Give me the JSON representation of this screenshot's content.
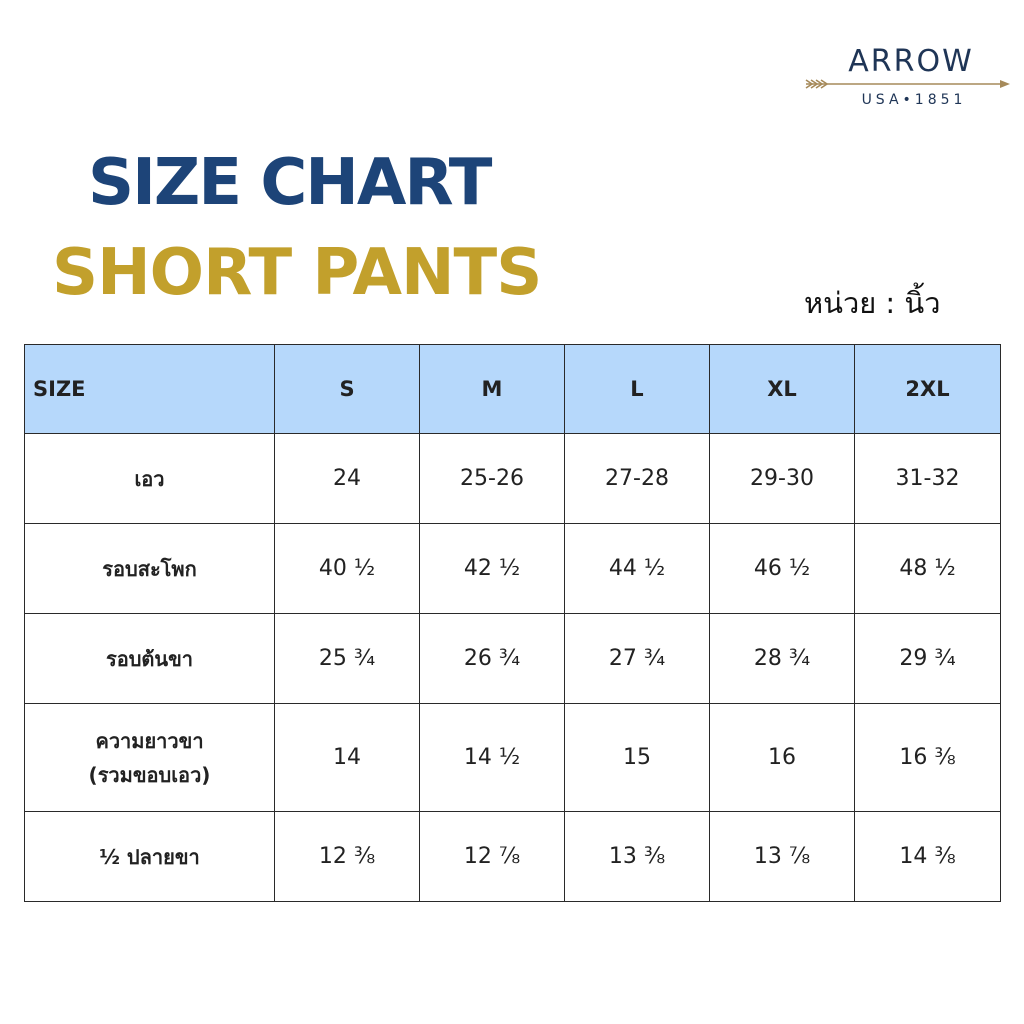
{
  "brand": {
    "name": "ARROW",
    "tagline": "USA•1851",
    "colors": {
      "navy": "#1f3556",
      "gold": "#a68a5a"
    }
  },
  "title": {
    "line1": "SIZE CHART",
    "line2": "SHORT PANTS",
    "line1_color": "#1d4478",
    "line2_color": "#c2a02c"
  },
  "unit_label": "หน่วย : นิ้ว",
  "table": {
    "header_color": "#b6d8fb",
    "columns": [
      "SIZE",
      "S",
      "M",
      "L",
      "XL",
      "2XL"
    ],
    "rows": [
      {
        "label": "เอว",
        "values": [
          "24",
          "25-26",
          "27-28",
          "29-30",
          "31-32"
        ]
      },
      {
        "label": "รอบสะโพก",
        "values": [
          "40 ½",
          "42 ½",
          "44 ½",
          "46 ½",
          "48 ½"
        ]
      },
      {
        "label": "รอบต้นขา",
        "values": [
          "25 ¾",
          "26 ¾",
          "27 ¾",
          "28 ¾",
          "29 ¾"
        ]
      },
      {
        "label": "ความยาวขา",
        "label2": "(รวมขอบเอว)",
        "values": [
          "14",
          "14 ½",
          "15",
          "16",
          "16 ⅜"
        ]
      },
      {
        "label": "½ ปลายขา",
        "values": [
          "12 ⅜",
          "12 ⅞",
          "13 ⅜",
          "13 ⅞",
          "14 ⅜"
        ]
      }
    ]
  }
}
